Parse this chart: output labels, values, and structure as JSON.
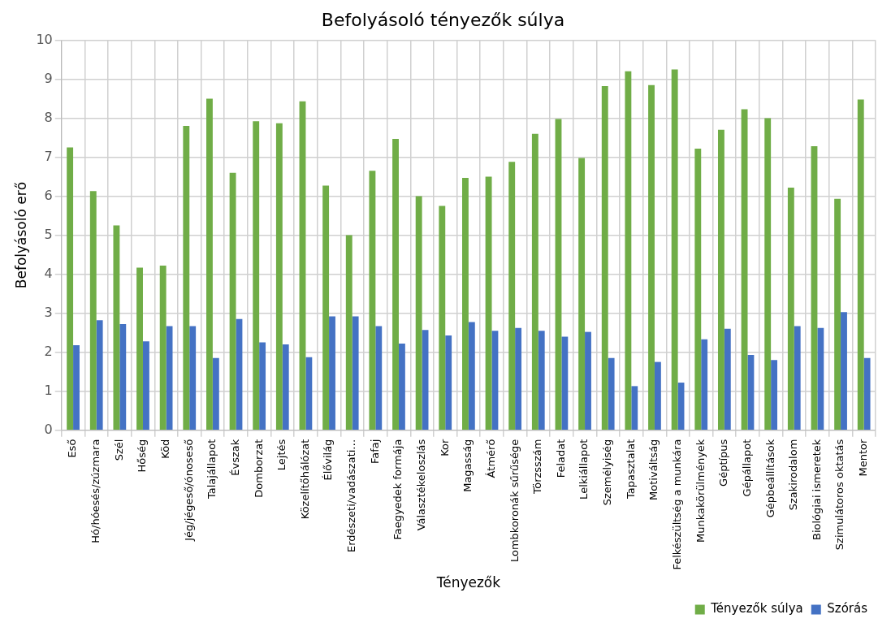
{
  "chart_data": {
    "type": "bar",
    "title": "Befolyásoló tényezők súlya",
    "xlabel": "Tényezők",
    "ylabel": "Befolyásoló erő",
    "categories": [
      "Eső",
      "Hó/hóesés/zúzmara",
      "Szél",
      "Hőség",
      "Köd",
      "Jég/jégeső/ónoseső",
      "Talajállapot",
      "Évszak",
      "Domborzat",
      "Lejtés",
      "Közelítőhálózat",
      "Élővilág",
      "Erdészeti/vadászati…",
      "Fafaj",
      "Faegyedek formája",
      "Választékeloszlás",
      "Kor",
      "Magasság",
      "Átmérő",
      "Lombkoronák sűrűsége",
      "Törzsszám",
      "Feladat",
      "Lelkiállapot",
      "Személyiség",
      "Tapasztalat",
      "Motiváltság",
      "Felkészültség a munkára",
      "Munkakörülmények",
      "Géptípus",
      "Gépállapot",
      "Gépbeállítások",
      "Szakirodalom",
      "Biológiai ismeretek",
      "Szimulátoros oktatás",
      "Mentor"
    ],
    "series": [
      {
        "name": "Tényezők súlya",
        "color": "#70ad47",
        "values": [
          7.25,
          6.13,
          5.25,
          4.17,
          4.22,
          7.8,
          8.5,
          6.6,
          7.92,
          7.87,
          8.43,
          6.27,
          5.0,
          6.65,
          7.47,
          6.0,
          5.75,
          6.47,
          6.5,
          6.88,
          7.6,
          7.98,
          6.98,
          8.82,
          9.2,
          8.85,
          9.25,
          7.22,
          7.7,
          8.23,
          8.0,
          6.22,
          7.28,
          5.93,
          8.48
        ]
      },
      {
        "name": "Szórás",
        "color": "#4472c4",
        "values": [
          2.18,
          2.82,
          2.72,
          2.28,
          2.67,
          2.67,
          1.85,
          2.85,
          2.25,
          2.2,
          1.87,
          2.92,
          2.92,
          2.67,
          2.22,
          2.57,
          2.43,
          2.77,
          2.55,
          2.62,
          2.55,
          2.4,
          2.52,
          1.85,
          1.13,
          1.75,
          1.22,
          2.33,
          2.6,
          1.93,
          1.8,
          2.67,
          2.62,
          3.03,
          1.85
        ]
      }
    ],
    "ylim": [
      0,
      10
    ],
    "yticks": [
      0,
      1,
      2,
      3,
      4,
      5,
      6,
      7,
      8,
      9,
      10
    ],
    "grid": true,
    "legend": "bottom right"
  }
}
